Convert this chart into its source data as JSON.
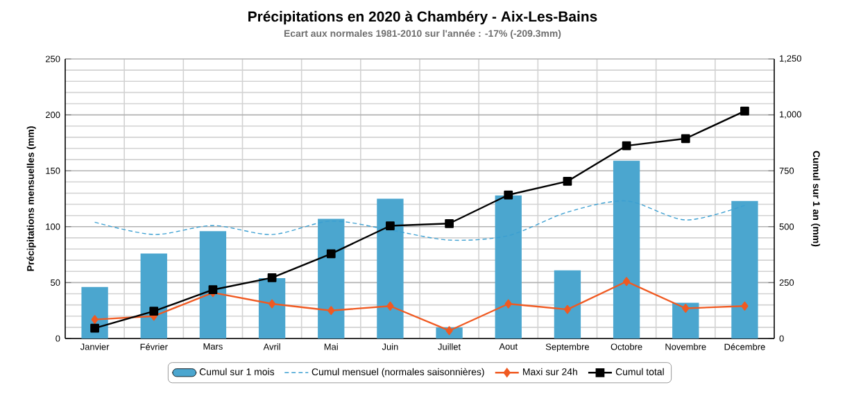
{
  "chart_data": {
    "type": "bar",
    "title": "Précipitations en 2020 à Chambéry - Aix-Les-Bains",
    "subtitle": "Ecart aux normales 1981-2010 sur l'année : -17% (-209.3mm)",
    "ylabel": "Précipitations mensuelles (mm)",
    "y2label": "Cumul sur 1 an (mm)",
    "categories": [
      "Janvier",
      "Février",
      "Mars",
      "Avril",
      "Mai",
      "Juin",
      "Juillet",
      "Aout",
      "Septembre",
      "Octobre",
      "Novembre",
      "Décembre"
    ],
    "series": [
      {
        "name": "Cumul sur 1 mois",
        "color": "#4ba6cf",
        "values": [
          46,
          76,
          96,
          54,
          107,
          125,
          10,
          128,
          61,
          159,
          32,
          123
        ]
      },
      {
        "name": "Cumul mensuel (normales saisonnières)",
        "type": "line",
        "color": "#3b9fd1",
        "line_style": "dashed",
        "marker": "none",
        "values": [
          104,
          93,
          101,
          93,
          105,
          97,
          88,
          92,
          113,
          123,
          106,
          119
        ]
      },
      {
        "name": "Maxi sur 24h",
        "type": "line",
        "color": "#f05a22",
        "marker": "diamond",
        "values": [
          17,
          20,
          41,
          31,
          25,
          29,
          7,
          31,
          26,
          51,
          27,
          29
        ]
      },
      {
        "name": "Cumul total",
        "type": "line",
        "color": "#000000",
        "marker": "square",
        "axis": "y2",
        "values": [
          46,
          122,
          218,
          272,
          379,
          504,
          514,
          642,
          703,
          862,
          894,
          1017
        ]
      }
    ],
    "ylim": [
      0,
      250
    ],
    "yticks": [
      0,
      50,
      100,
      150,
      200,
      250
    ],
    "y2lim": [
      0,
      1250
    ],
    "y2ticks": [
      0,
      250,
      500,
      750,
      {
        "value": 1000,
        "label": "1,000"
      },
      {
        "value": 1250,
        "label": "1,250"
      }
    ],
    "grid": true,
    "legend": "bottom"
  }
}
